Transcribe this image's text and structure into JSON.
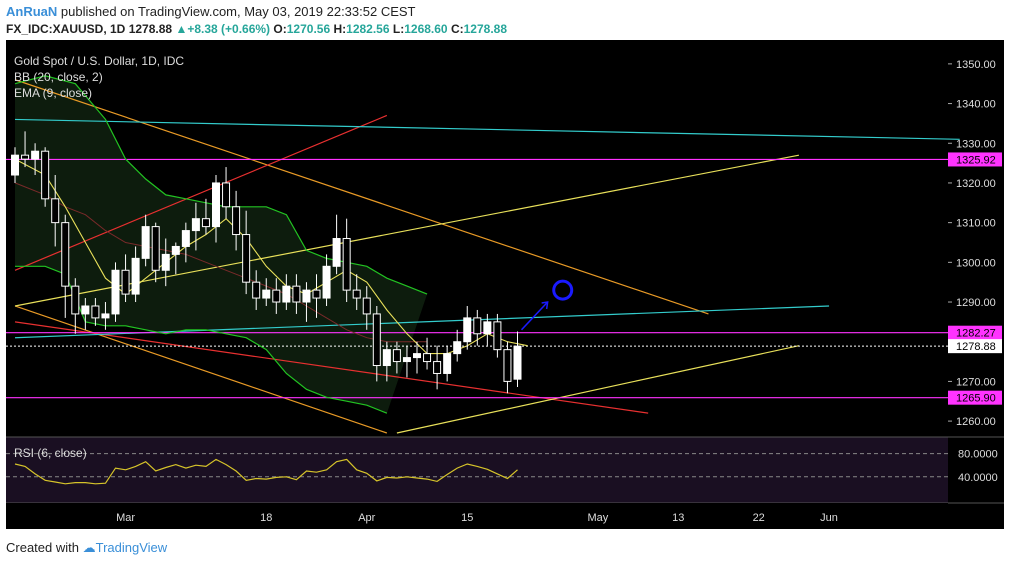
{
  "header": {
    "author": "AnRuaN",
    "published": "published on TradingView.com, May 03, 2019 22:33:52 CEST",
    "symbol": "FX_IDC:XAUUSD, 1D",
    "last": "1278.88",
    "change": "+8.38 (+0.66%)",
    "o_label": "O:",
    "o": "1270.56",
    "h_label": "H:",
    "h": "1282.56",
    "l_label": "L:",
    "l": "1268.60",
    "c_label": "C:",
    "c": "1278.88"
  },
  "legend": {
    "title": "Gold Spot / U.S. Dollar, 1D, IDC",
    "bb": "BB (20, close, 2)",
    "ema": "EMA (9, close)",
    "rsi": "RSI (6, close)"
  },
  "footer": {
    "created": "Created with",
    "brand": "TradingView"
  },
  "colors": {
    "bg": "#000000",
    "up": "#ffffff",
    "down": "#ffffff",
    "bb": "#22c322",
    "ema": "#e8e05a",
    "magenta": "#ff33ff",
    "cyan": "#33cccc",
    "orange": "#e89a26",
    "red": "#e83030",
    "blue": "#1a1aff",
    "rsi": "#d6c42a"
  },
  "chart_data": {
    "type": "candlestick",
    "ylim": [
      1257,
      1354
    ],
    "y_ticks": [
      "1350.00",
      "1340.00",
      "1330.00",
      "1320.00",
      "1310.00",
      "1300.00",
      "1290.00",
      "1280.00",
      "1270.00",
      "1260.00"
    ],
    "y_tick_values": [
      1350,
      1340,
      1330,
      1320,
      1310,
      1300,
      1290,
      1280,
      1270,
      1260
    ],
    "price_labels": [
      {
        "text": "1325.92",
        "value": 1325.92,
        "color": "#ff33ff"
      },
      {
        "text": "1282.27",
        "value": 1282.27,
        "color": "#ff33ff"
      },
      {
        "text": "1278.88",
        "value": 1278.88,
        "color": "#ffffff"
      },
      {
        "text": "1265.90",
        "value": 1265.9,
        "color": "#ff33ff"
      }
    ],
    "x_ticks": [
      {
        "label": "Mar",
        "i": 11
      },
      {
        "label": "18",
        "i": 25
      },
      {
        "label": "Apr",
        "i": 35
      },
      {
        "label": "15",
        "i": 45
      },
      {
        "label": "May",
        "i": 58
      },
      {
        "label": "13",
        "i": 66
      },
      {
        "label": "22",
        "i": 74
      },
      {
        "label": "Jun",
        "i": 81
      }
    ],
    "candles": [
      [
        1322,
        1329,
        1320,
        1327
      ],
      [
        1327,
        1333,
        1324,
        1326
      ],
      [
        1326,
        1330,
        1322,
        1328
      ],
      [
        1328,
        1329,
        1314,
        1316
      ],
      [
        1316,
        1322,
        1304,
        1310
      ],
      [
        1310,
        1312,
        1286,
        1294
      ],
      [
        1294,
        1296,
        1282,
        1287
      ],
      [
        1287,
        1291,
        1283,
        1289
      ],
      [
        1289,
        1291,
        1284,
        1286
      ],
      [
        1286,
        1290,
        1283,
        1287
      ],
      [
        1287,
        1300,
        1285,
        1298
      ],
      [
        1298,
        1302,
        1290,
        1292
      ],
      [
        1292,
        1304,
        1290,
        1301
      ],
      [
        1301,
        1312,
        1299,
        1309
      ],
      [
        1309,
        1310,
        1295,
        1298
      ],
      [
        1298,
        1306,
        1294,
        1302
      ],
      [
        1302,
        1305,
        1297,
        1304
      ],
      [
        1304,
        1310,
        1300,
        1308
      ],
      [
        1308,
        1315,
        1303,
        1311
      ],
      [
        1311,
        1316,
        1307,
        1309
      ],
      [
        1309,
        1322,
        1305,
        1320
      ],
      [
        1320,
        1324,
        1311,
        1314
      ],
      [
        1314,
        1318,
        1303,
        1307
      ],
      [
        1307,
        1313,
        1292,
        1295
      ],
      [
        1295,
        1298,
        1288,
        1291
      ],
      [
        1291,
        1296,
        1289,
        1293
      ],
      [
        1293,
        1296,
        1287,
        1290
      ],
      [
        1290,
        1297,
        1288,
        1294
      ],
      [
        1294,
        1297,
        1287,
        1290
      ],
      [
        1290,
        1295,
        1285,
        1293
      ],
      [
        1293,
        1297,
        1286,
        1291
      ],
      [
        1291,
        1302,
        1289,
        1299
      ],
      [
        1299,
        1312,
        1297,
        1306
      ],
      [
        1306,
        1311,
        1290,
        1293
      ],
      [
        1293,
        1297,
        1288,
        1291
      ],
      [
        1291,
        1294,
        1283,
        1287
      ],
      [
        1287,
        1289,
        1270,
        1274
      ],
      [
        1274,
        1280,
        1270,
        1278
      ],
      [
        1278,
        1280,
        1272,
        1275
      ],
      [
        1275,
        1279,
        1271,
        1276
      ],
      [
        1276,
        1280,
        1272,
        1277
      ],
      [
        1277,
        1281,
        1273,
        1275
      ],
      [
        1275,
        1279,
        1268,
        1272
      ],
      [
        1272,
        1279,
        1270,
        1277
      ],
      [
        1277,
        1283,
        1275,
        1280
      ],
      [
        1280,
        1289,
        1278,
        1286
      ],
      [
        1286,
        1288,
        1279,
        1282
      ],
      [
        1282,
        1287,
        1279,
        1285
      ],
      [
        1285,
        1287,
        1276,
        1278
      ],
      [
        1278,
        1280,
        1267,
        1270
      ],
      [
        1270.56,
        1282.56,
        1268.6,
        1278.88
      ]
    ],
    "bb_upper": [
      [
        0,
        1345
      ],
      [
        3,
        1347
      ],
      [
        6,
        1345
      ],
      [
        9,
        1336
      ],
      [
        11,
        1326
      ],
      [
        13,
        1321
      ],
      [
        15,
        1317
      ],
      [
        17,
        1316
      ],
      [
        19,
        1315
      ],
      [
        21,
        1314
      ],
      [
        23,
        1314
      ],
      [
        25,
        1314
      ],
      [
        27,
        1312
      ],
      [
        29,
        1303
      ],
      [
        31,
        1301
      ],
      [
        33,
        1300
      ],
      [
        35,
        1299
      ],
      [
        37,
        1296
      ],
      [
        39,
        1294
      ],
      [
        41,
        1292
      ]
    ],
    "bb_lower": [
      [
        0,
        1299
      ],
      [
        3,
        1299
      ],
      [
        5,
        1297
      ],
      [
        7,
        1285
      ],
      [
        9,
        1284
      ],
      [
        11,
        1284
      ],
      [
        13,
        1283
      ],
      [
        15,
        1282
      ],
      [
        17,
        1283
      ],
      [
        19,
        1283
      ],
      [
        21,
        1282
      ],
      [
        23,
        1281
      ],
      [
        25,
        1278
      ],
      [
        27,
        1272
      ],
      [
        29,
        1268
      ],
      [
        31,
        1266
      ],
      [
        33,
        1265
      ],
      [
        35,
        1264
      ],
      [
        37,
        1262
      ]
    ],
    "bb_mid": [
      [
        0,
        1320
      ],
      [
        3,
        1317
      ],
      [
        5,
        1314
      ],
      [
        7,
        1312
      ],
      [
        9,
        1308
      ],
      [
        11,
        1305
      ],
      [
        13,
        1304
      ],
      [
        15,
        1303
      ],
      [
        17,
        1302
      ],
      [
        19,
        1300
      ],
      [
        21,
        1298
      ],
      [
        23,
        1296
      ],
      [
        25,
        1294
      ],
      [
        27,
        1292
      ],
      [
        29,
        1289
      ],
      [
        31,
        1286
      ],
      [
        33,
        1283
      ],
      [
        35,
        1281
      ],
      [
        37,
        1280
      ],
      [
        41,
        1280
      ]
    ],
    "ema": [
      [
        0,
        1326
      ],
      [
        3,
        1322
      ],
      [
        5,
        1314
      ],
      [
        7,
        1305
      ],
      [
        9,
        1296
      ],
      [
        11,
        1292
      ],
      [
        13,
        1296
      ],
      [
        15,
        1300
      ],
      [
        17,
        1304
      ],
      [
        19,
        1307
      ],
      [
        21,
        1311
      ],
      [
        23,
        1306
      ],
      [
        25,
        1299
      ],
      [
        27,
        1294
      ],
      [
        29,
        1292
      ],
      [
        31,
        1295
      ],
      [
        33,
        1298
      ],
      [
        35,
        1295
      ],
      [
        37,
        1288
      ],
      [
        39,
        1282
      ],
      [
        41,
        1277
      ],
      [
        43,
        1277
      ],
      [
        45,
        1279
      ],
      [
        47,
        1282
      ],
      [
        49,
        1280
      ],
      [
        51,
        1279
      ]
    ],
    "rsi": {
      "ylim": [
        0,
        100
      ],
      "ticks": [
        "80.0000",
        "40.0000"
      ],
      "tick_values": [
        80,
        40
      ],
      "values": [
        62,
        58,
        45,
        34,
        31,
        28,
        30,
        30,
        28,
        29,
        55,
        52,
        58,
        66,
        50,
        56,
        61,
        55,
        60,
        58,
        70,
        61,
        50,
        34,
        37,
        36,
        39,
        40,
        35,
        50,
        48,
        52,
        66,
        70,
        52,
        46,
        33,
        39,
        38,
        40,
        38,
        36,
        32,
        44,
        55,
        62,
        58,
        53,
        45,
        37,
        52
      ]
    }
  }
}
